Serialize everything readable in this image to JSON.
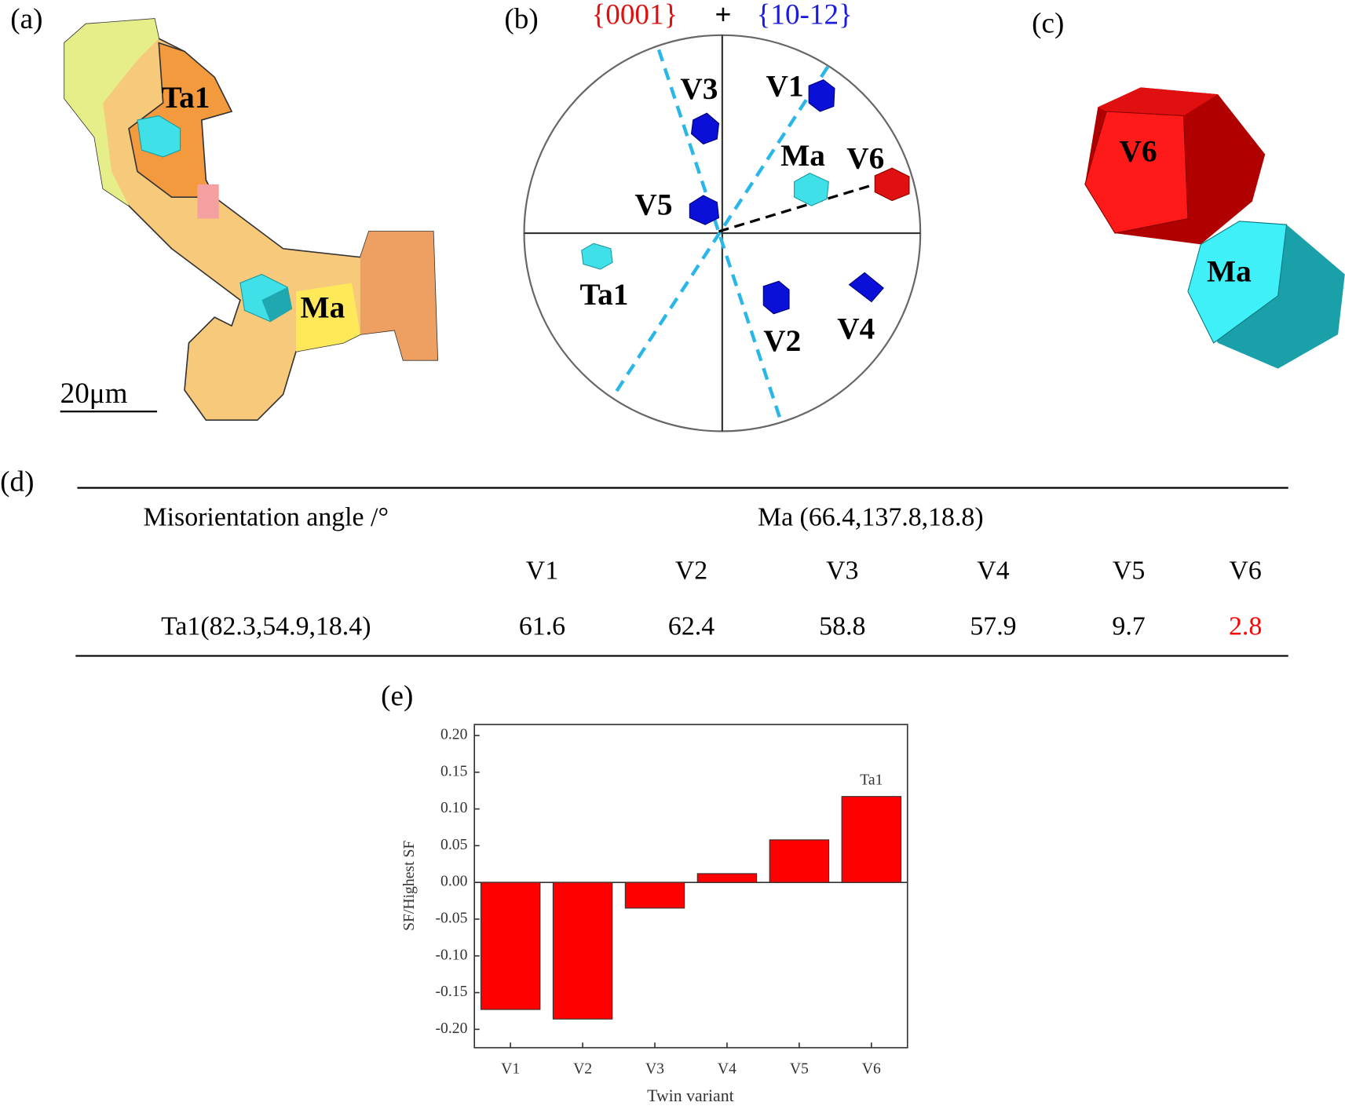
{
  "panel_labels": [
    "(a)",
    "(b)",
    "(c)",
    "(d)",
    "(e)"
  ],
  "panel_a": {
    "labels": [
      "Ta1",
      "Ma"
    ],
    "scale_bar": "20μm"
  },
  "panel_b": {
    "title": [
      "{0001}",
      "+",
      "{10-12}"
    ],
    "labels": [
      "V1",
      "V2",
      "V3",
      "V4",
      "V5",
      "V6",
      "Ma",
      "Ta1"
    ]
  },
  "panel_c": {
    "labels": [
      "V6",
      "Ma"
    ]
  },
  "table": {
    "header": [
      "Misorientation angle /°",
      "Ma (66.4,137.8,18.8)"
    ],
    "columns": [
      "V1",
      "V2",
      "V3",
      "V4",
      "V5",
      "V6"
    ],
    "rows": [
      [
        "Ta1(82.3,54.9,18.4)",
        "61.6",
        "62.4",
        "58.8",
        "57.9",
        "9.7",
        "2.8"
      ]
    ]
  },
  "chart_data": {
    "type": "bar",
    "x_label": "Twin variant",
    "y_label": "SF/Highest SF",
    "categories": [
      "V1",
      "V2",
      "V3",
      "V4",
      "V5",
      "V6"
    ],
    "values": [
      -0.173,
      -0.186,
      -0.035,
      0.012,
      0.058,
      0.117
    ],
    "color": "#ff0000",
    "annotations": [
      "Ta1"
    ],
    "ylim": [
      -0.225,
      0.215
    ],
    "yticks": [
      {
        "value": -0.2,
        "label": "-0.20"
      },
      -0.15,
      {
        "value": -0.1,
        "label": "-0.10"
      },
      -0.05,
      {
        "value": 0,
        "label": "0.00"
      },
      0.05,
      {
        "value": 0.1,
        "label": "0.10"
      },
      0.15,
      {
        "value": 0.2,
        "label": "0.20"
      }
    ]
  }
}
